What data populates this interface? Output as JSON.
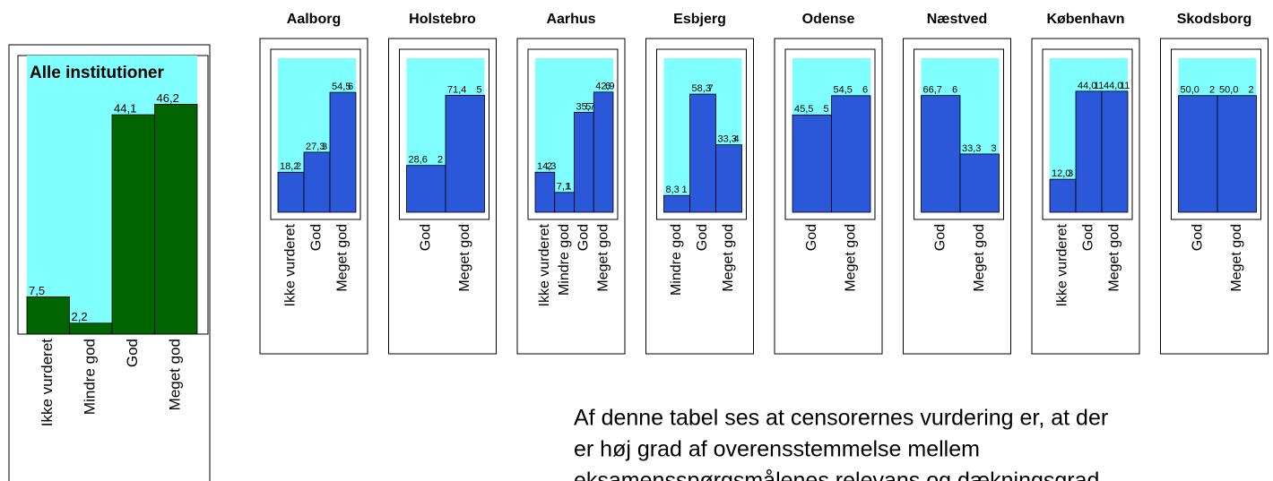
{
  "chart_data": [
    {
      "type": "bar",
      "title": "Alle institutioner",
      "categories": [
        "Ikke vurderet",
        "Mindre god",
        "God",
        "Meget god"
      ],
      "values": [
        7.5,
        2.2,
        44.1,
        46.2
      ],
      "value_labels": [
        "7,5",
        "2,2",
        "44,1",
        "46,2"
      ],
      "ylim": [
        0,
        56
      ],
      "color": "#006400",
      "background": "#80ffff"
    },
    {
      "type": "bar",
      "title": "Aalborg",
      "categories": [
        "Ikke vurderet",
        "God",
        "Meget god"
      ],
      "values": [
        18.2,
        27.3,
        54.5
      ],
      "value_labels": [
        "18,2",
        "27,3",
        "54,5"
      ],
      "counts": [
        2,
        3,
        6
      ],
      "ylim": [
        0,
        70
      ],
      "color": "#2b57d9",
      "background": "#80ffff"
    },
    {
      "type": "bar",
      "title": "Holstebro",
      "categories": [
        "God",
        "Meget god"
      ],
      "values": [
        28.6,
        71.4
      ],
      "value_labels": [
        "28,6",
        "71,4"
      ],
      "counts": [
        2,
        5
      ],
      "ylim": [
        0,
        94
      ],
      "color": "#2b57d9",
      "background": "#80ffff"
    },
    {
      "type": "bar",
      "title": "Aarhus",
      "categories": [
        "Ikke vurderet",
        "Mindre god",
        "God",
        "Meget god"
      ],
      "values": [
        14.3,
        7.1,
        35.7,
        42.9
      ],
      "value_labels": [
        "14,3",
        "7,1",
        "35,7",
        "42,9"
      ],
      "counts": [
        2,
        1,
        5,
        6
      ],
      "ylim": [
        0,
        55
      ],
      "color": "#2b57d9",
      "background": "#80ffff"
    },
    {
      "type": "bar",
      "title": "Esbjerg",
      "categories": [
        "Mindre god",
        "God",
        "Meget god"
      ],
      "values": [
        8.3,
        58.3,
        33.3
      ],
      "value_labels": [
        "8,3",
        "58,3",
        "33,3"
      ],
      "counts": [
        1,
        7,
        4
      ],
      "ylim": [
        0,
        76
      ],
      "color": "#2b57d9",
      "background": "#80ffff"
    },
    {
      "type": "bar",
      "title": "Odense",
      "categories": [
        "God",
        "Meget god"
      ],
      "values": [
        45.5,
        54.5
      ],
      "value_labels": [
        "45,5",
        "54,5"
      ],
      "counts": [
        5,
        6
      ],
      "ylim": [
        0,
        72
      ],
      "color": "#2b57d9",
      "background": "#80ffff"
    },
    {
      "type": "bar",
      "title": "Næstved",
      "categories": [
        "God",
        "Meget god"
      ],
      "values": [
        66.7,
        33.3
      ],
      "value_labels": [
        "66,7",
        "33,3"
      ],
      "counts": [
        6,
        3
      ],
      "ylim": [
        0,
        88
      ],
      "color": "#2b57d9",
      "background": "#80ffff"
    },
    {
      "type": "bar",
      "title": "København",
      "categories": [
        "Ikke vurderet",
        "God",
        "Meget god"
      ],
      "values": [
        12.0,
        44.0,
        44.0
      ],
      "value_labels": [
        "12,0",
        "44,0",
        "44,0"
      ],
      "counts": [
        3,
        11,
        11
      ],
      "ylim": [
        0,
        56
      ],
      "color": "#2b57d9",
      "background": "#80ffff"
    },
    {
      "type": "bar",
      "title": "Skodsborg",
      "categories": [
        "God",
        "Meget god"
      ],
      "values": [
        50.0,
        50.0
      ],
      "value_labels": [
        "50,0",
        "50,0"
      ],
      "counts": [
        2,
        2
      ],
      "ylim": [
        0,
        66
      ],
      "color": "#2b57d9",
      "background": "#80ffff"
    }
  ],
  "text": {
    "lines": [
      "Af denne tabel ses at censorernes vurdering er, at der",
      "er høj grad af overensstemmelse mellem",
      "eksamensspørgsmålenes relevans og dækningsgrad"
    ]
  }
}
